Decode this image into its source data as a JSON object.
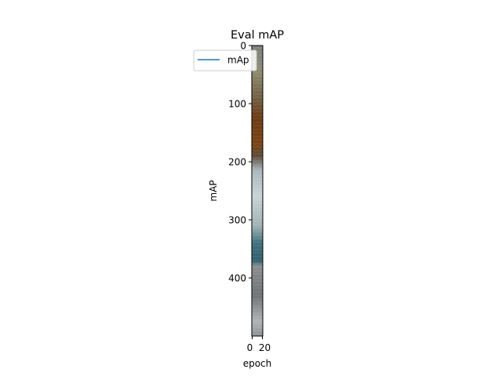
{
  "chart_data": {
    "type": "line",
    "title": "Eval mAP",
    "xlabel": "epoch",
    "ylabel": "mAP",
    "x_ticks": [
      "0",
      "20"
    ],
    "y_ticks": [
      "0",
      "100",
      "200",
      "300",
      "400"
    ],
    "y_axis_inverted": true,
    "ylim": [
      500,
      0
    ],
    "grid": false,
    "legend": {
      "placement": "top-left",
      "entries": [
        {
          "label": "mAp",
          "color": "#1f77b4"
        }
      ]
    },
    "series": [
      {
        "name": "mAp",
        "color": "#1f77b4",
        "x": [],
        "y": []
      }
    ],
    "background_image": "image strip drawn inside the axes (textured stone / landscape photo, brown and blue-gray bands)"
  }
}
